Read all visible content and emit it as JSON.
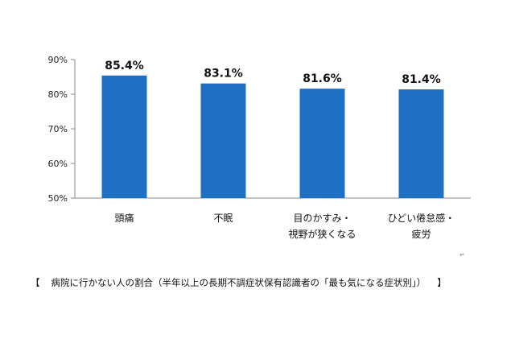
{
  "chart_data": {
    "type": "bar",
    "categories": [
      [
        "頭痛"
      ],
      [
        "不眠"
      ],
      [
        "目のかすみ・",
        "視野が狭くなる"
      ],
      [
        "ひどい倦怠感・",
        "疲労"
      ]
    ],
    "values": [
      85.4,
      83.1,
      81.6,
      81.4
    ],
    "data_labels": [
      "85.4%",
      "83.1%",
      "81.6%",
      "81.4%"
    ],
    "ylim": [
      50,
      90
    ],
    "y_ticks": [
      "50%",
      "60%",
      "70%",
      "80%",
      "90%"
    ],
    "bar_color": "#1f6fc5",
    "grid": false,
    "title": "",
    "xlabel": "",
    "ylabel": ""
  },
  "caption": {
    "open": "【",
    "text": "病院に行かない人の割合（半年以上の長期不調症状保有認識者の「最も気になる症状別」）",
    "close": "】"
  },
  "paragraph_mark": "↵"
}
